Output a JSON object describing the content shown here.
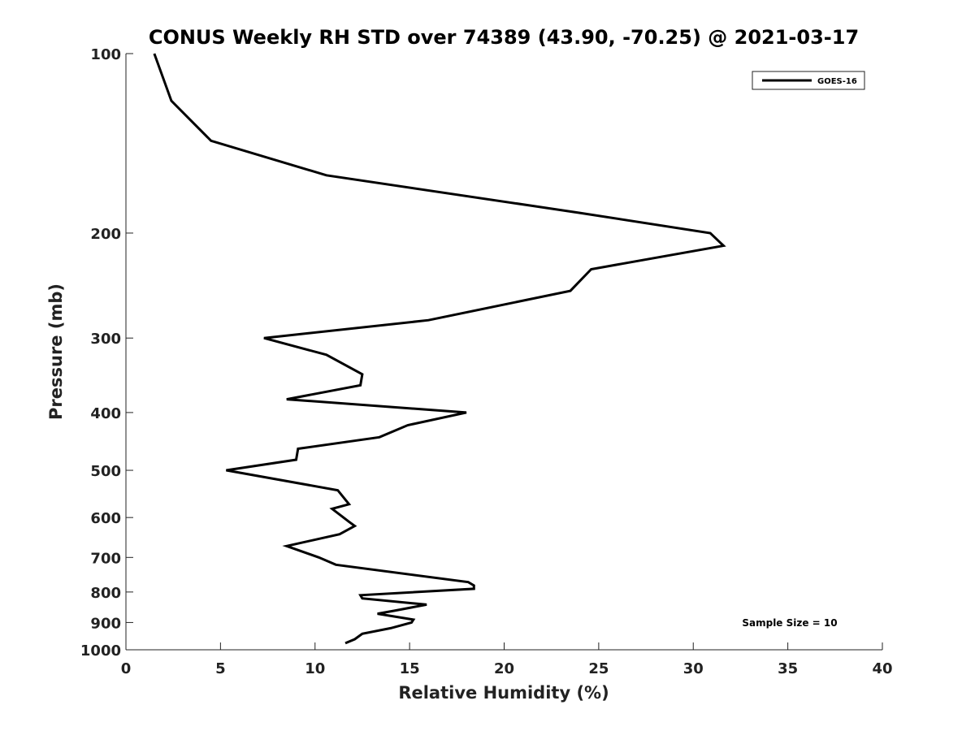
{
  "chart_data": {
    "type": "line",
    "title": "CONUS Weekly RH STD over 74389 (43.90, -70.25) @ 2021-03-17",
    "xlabel": "Relative Humidity (%)",
    "ylabel": "Pressure (mb)",
    "xlim": [
      0,
      40
    ],
    "ylim": [
      100,
      1000
    ],
    "yscale": "log",
    "y_reversed": true,
    "x_ticks": [
      0,
      5,
      10,
      15,
      20,
      25,
      30,
      35,
      40
    ],
    "x_tick_labels": [
      "0",
      "5",
      "10",
      "15",
      "20",
      "25",
      "30",
      "35",
      "40"
    ],
    "y_ticks": [
      100,
      200,
      300,
      400,
      500,
      600,
      700,
      800,
      900,
      1000
    ],
    "y_tick_labels": [
      "100",
      "200",
      "300",
      "400",
      "500",
      "600",
      "700",
      "800",
      "900",
      "1000"
    ],
    "grid": false,
    "legend_position": "top-right",
    "annotation": "Sample Size = 10",
    "series": [
      {
        "name": "GOES-16",
        "color": "#000000",
        "x": [
          1.5,
          2.4,
          4.5,
          10.6,
          24.0,
          30.9,
          31.6,
          24.6,
          23.5,
          16.0,
          7.3,
          10.6,
          12.5,
          12.4,
          8.5,
          18.0,
          14.9,
          13.4,
          9.1,
          9.0,
          5.3,
          11.2,
          11.8,
          10.9,
          11.8,
          12.1,
          11.3,
          8.5,
          10.2,
          11.1,
          18.1,
          18.4,
          18.4,
          12.4,
          12.5,
          15.9,
          14.2,
          13.3,
          15.2,
          15.1,
          14.0,
          12.5,
          12.1,
          11.6
        ],
        "y": [
          100,
          120,
          140,
          160,
          185,
          200,
          210,
          230,
          250,
          280,
          300,
          320,
          345,
          360,
          380,
          400,
          420,
          440,
          460,
          480,
          500,
          540,
          570,
          580,
          610,
          620,
          640,
          670,
          700,
          720,
          770,
          780,
          790,
          810,
          820,
          840,
          860,
          870,
          890,
          900,
          920,
          940,
          960,
          975
        ]
      }
    ]
  }
}
